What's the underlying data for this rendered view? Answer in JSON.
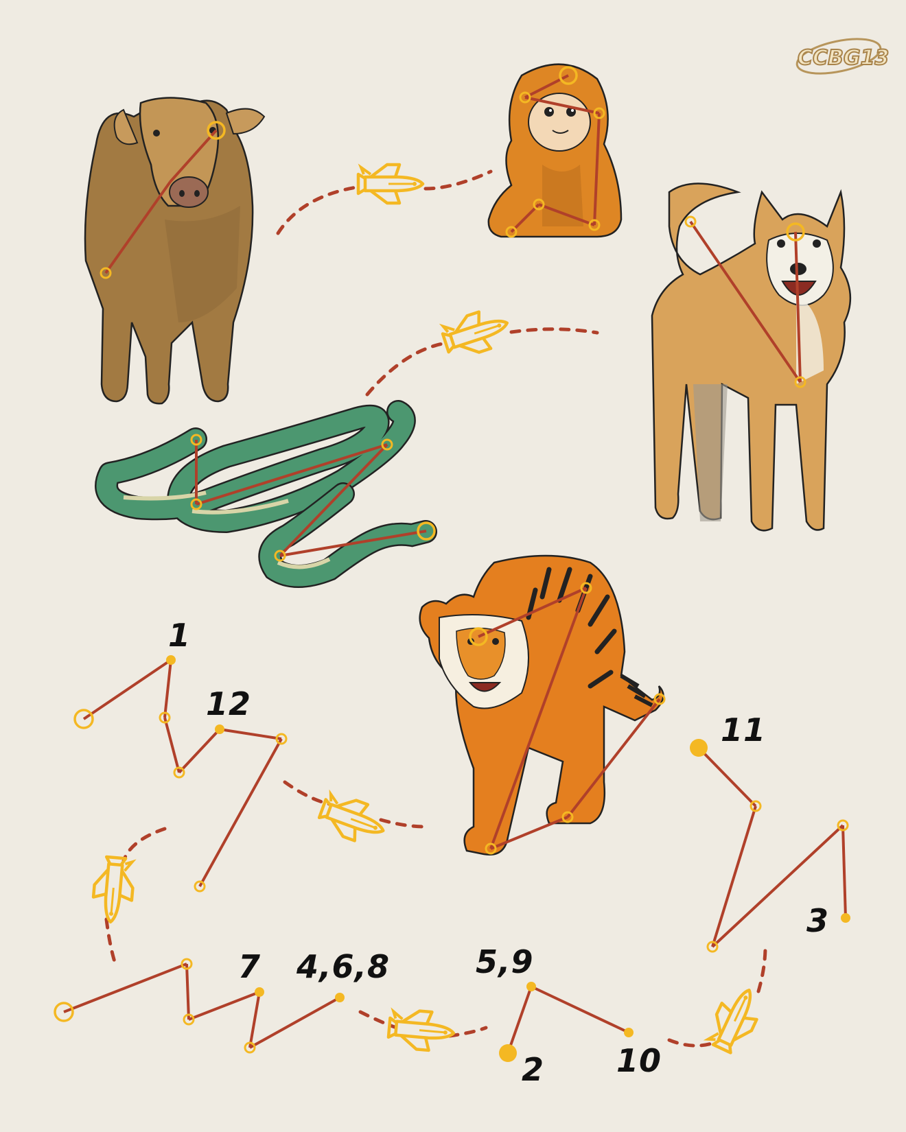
{
  "logo": {
    "text": "CCBG13"
  },
  "labels": {
    "n1": "1",
    "n12": "12",
    "n11": "11",
    "n3": "3",
    "n7": "7",
    "n468": "4,6,8",
    "n59": "5,9",
    "n2": "2",
    "n10": "10"
  },
  "colors": {
    "background": "#efebe2",
    "line": "#b0402a",
    "node": "#f4b823",
    "ink": "#111111"
  }
}
